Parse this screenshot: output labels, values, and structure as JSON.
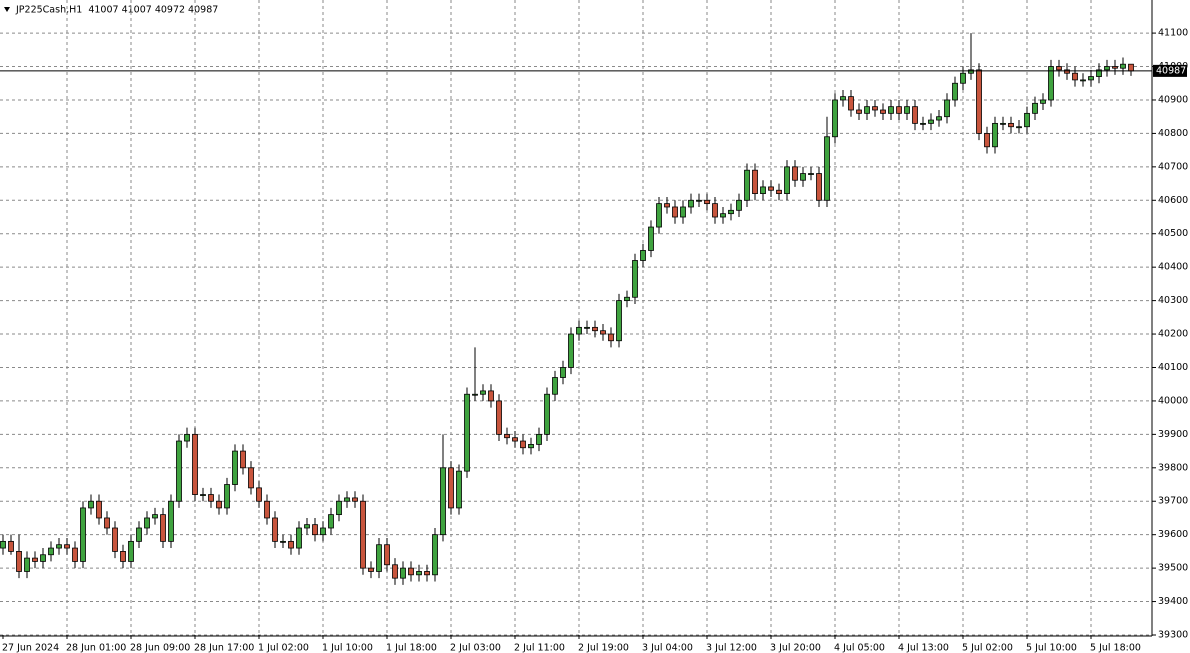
{
  "chart_data": {
    "type": "candlestick",
    "title": "JP225Cash,H1  41007 41007 40972 40987",
    "categories": [
      "27 Jun 2024",
      null,
      null,
      null,
      null,
      null,
      null,
      null,
      "28 Jun 01:00",
      null,
      null,
      null,
      null,
      null,
      null,
      null,
      "28 Jun 09:00",
      null,
      null,
      null,
      null,
      null,
      null,
      null,
      "28 Jun 17:00",
      null,
      null,
      null,
      null,
      null,
      null,
      null,
      "1 Jul 02:00",
      null,
      null,
      null,
      null,
      null,
      null,
      null,
      "1 Jul 10:00",
      null,
      null,
      null,
      null,
      null,
      null,
      null,
      "1 Jul 18:00",
      null,
      null,
      null,
      null,
      null,
      null,
      null,
      "2 Jul 03:00",
      null,
      null,
      null,
      null,
      null,
      null,
      null,
      "2 Jul 11:00",
      null,
      null,
      null,
      null,
      null,
      null,
      null,
      "2 Jul 19:00",
      null,
      null,
      null,
      null,
      null,
      null,
      null,
      "3 Jul 04:00",
      null,
      null,
      null,
      null,
      null,
      null,
      null,
      "3 Jul 12:00",
      null,
      null,
      null,
      null,
      null,
      null,
      null,
      "3 Jul 20:00",
      null,
      null,
      null,
      null,
      null,
      null,
      null,
      "4 Jul 05:00",
      null,
      null,
      null,
      null,
      null,
      null,
      null,
      "4 Jul 13:00",
      null,
      null,
      null,
      null,
      null,
      null,
      null,
      "5 Jul 02:00",
      null,
      null,
      null,
      null,
      null,
      null,
      null,
      "5 Jul 10:00",
      null,
      null,
      null,
      null,
      null,
      null,
      null,
      "5 Jul 18:00",
      null,
      null,
      null,
      null,
      null
    ],
    "open": [
      39560,
      39580,
      39550,
      39490,
      39530,
      39520,
      39540,
      39560,
      39570,
      39560,
      39520,
      39680,
      39700,
      39650,
      39620,
      39550,
      39520,
      39580,
      39620,
      39650,
      39660,
      39580,
      39700,
      39880,
      39900,
      39720,
      39720,
      39700,
      39680,
      39750,
      39850,
      39800,
      39740,
      39700,
      39650,
      39580,
      39580,
      39560,
      39620,
      39630,
      39600,
      39620,
      39660,
      39700,
      39710,
      39700,
      39500,
      39490,
      39570,
      39510,
      39470,
      39500,
      39480,
      39490,
      39480,
      39600,
      39800,
      39680,
      39790,
      40020,
      40020,
      40030,
      40000,
      39900,
      39890,
      39880,
      39860,
      39870,
      39900,
      40020,
      40070,
      40100,
      40200,
      40220,
      40220,
      40210,
      40200,
      40180,
      40300,
      40310,
      40420,
      40450,
      40520,
      40590,
      40580,
      40550,
      40580,
      40600,
      40600,
      40590,
      40550,
      40560,
      40570,
      40600,
      40690,
      40620,
      40640,
      40630,
      40620,
      40700,
      40660,
      40680,
      40680,
      40600,
      40790,
      40900,
      40910,
      40870,
      40860,
      40880,
      40870,
      40860,
      40880,
      40860,
      40880,
      40830,
      40830,
      40840,
      40850,
      40900,
      40950,
      40980,
      40990,
      40800,
      40760,
      40830,
      40830,
      40820,
      40820,
      40860,
      40890,
      40900,
      41000,
      40990,
      40980,
      40960,
      40960,
      40970,
      40990,
      41000,
      40995,
      41007
    ],
    "high": [
      39600,
      39600,
      39600,
      39550,
      39550,
      39560,
      39580,
      39590,
      39590,
      39580,
      39700,
      39720,
      39720,
      39670,
      39640,
      39570,
      39600,
      39640,
      39670,
      39680,
      39680,
      39720,
      39900,
      39920,
      39920,
      39740,
      39740,
      39720,
      39770,
      39870,
      39870,
      39820,
      39760,
      39720,
      39670,
      39600,
      39600,
      39640,
      39650,
      39650,
      39640,
      39680,
      39720,
      39730,
      39730,
      39720,
      39520,
      39590,
      39590,
      39530,
      39520,
      39520,
      39510,
      39510,
      39620,
      39900,
      39820,
      39810,
      40040,
      40160,
      40050,
      40050,
      40020,
      39920,
      39910,
      39900,
      39890,
      39920,
      40040,
      40090,
      40120,
      40220,
      40240,
      40240,
      40240,
      40230,
      40220,
      40320,
      40330,
      40440,
      40470,
      40540,
      40610,
      40610,
      40600,
      40600,
      40620,
      40620,
      40620,
      40610,
      40580,
      40590,
      40620,
      40710,
      40710,
      40660,
      40660,
      40650,
      40720,
      40720,
      40700,
      40700,
      40700,
      40850,
      40920,
      40930,
      40930,
      40890,
      40900,
      40900,
      40890,
      40900,
      40900,
      40900,
      40900,
      40850,
      40860,
      40870,
      40920,
      40970,
      41000,
      41100,
      41010,
      40820,
      40850,
      40850,
      40850,
      40840,
      40880,
      40910,
      40920,
      41020,
      41020,
      41010,
      41000,
      40980,
      40990,
      41010,
      41020,
      41020,
      41027,
      41007
    ],
    "low": [
      39540,
      39540,
      39470,
      39470,
      39500,
      39500,
      39520,
      39540,
      39540,
      39500,
      39500,
      39660,
      39630,
      39600,
      39530,
      39500,
      39500,
      39560,
      39600,
      39630,
      39560,
      39560,
      39680,
      39860,
      39700,
      39700,
      39680,
      39660,
      39660,
      39730,
      39780,
      39720,
      39680,
      39630,
      39560,
      39560,
      39540,
      39540,
      39600,
      39580,
      39580,
      39600,
      39640,
      39680,
      39680,
      39480,
      39470,
      39470,
      39490,
      39450,
      39450,
      39460,
      39460,
      39460,
      39460,
      39580,
      39660,
      39660,
      39770,
      40000,
      40000,
      39980,
      39880,
      39870,
      39860,
      39840,
      39840,
      39850,
      39880,
      40000,
      40050,
      40080,
      40180,
      40200,
      40190,
      40180,
      40160,
      40160,
      40280,
      40290,
      40400,
      40430,
      40500,
      40560,
      40530,
      40530,
      40560,
      40580,
      40570,
      40530,
      40530,
      40540,
      40550,
      40580,
      40600,
      40600,
      40610,
      40600,
      40600,
      40640,
      40640,
      40660,
      40580,
      40580,
      40770,
      40880,
      40850,
      40840,
      40840,
      40850,
      40840,
      40840,
      40840,
      40840,
      40810,
      40810,
      40810,
      40820,
      40830,
      40880,
      40930,
      40960,
      40780,
      40740,
      40740,
      40810,
      40800,
      40800,
      40800,
      40840,
      40870,
      40880,
      40970,
      40960,
      40940,
      40940,
      40940,
      40950,
      40970,
      40975,
      40975,
      40972
    ],
    "close": [
      39580,
      39550,
      39490,
      39530,
      39520,
      39540,
      39560,
      39570,
      39560,
      39520,
      39680,
      39700,
      39650,
      39620,
      39550,
      39520,
      39580,
      39620,
      39650,
      39660,
      39580,
      39700,
      39880,
      39900,
      39720,
      39720,
      39700,
      39680,
      39750,
      39850,
      39800,
      39740,
      39700,
      39650,
      39580,
      39580,
      39560,
      39620,
      39630,
      39600,
      39620,
      39660,
      39700,
      39710,
      39700,
      39500,
      39490,
      39570,
      39510,
      39470,
      39500,
      39480,
      39490,
      39480,
      39600,
      39800,
      39680,
      39790,
      40020,
      40020,
      40030,
      40000,
      39900,
      39890,
      39880,
      39860,
      39870,
      39900,
      40020,
      40070,
      40100,
      40200,
      40220,
      40220,
      40210,
      40200,
      40180,
      40300,
      40310,
      40420,
      40450,
      40520,
      40590,
      40580,
      40550,
      40580,
      40600,
      40600,
      40590,
      40550,
      40560,
      40570,
      40600,
      40690,
      40620,
      40640,
      40630,
      40620,
      40700,
      40660,
      40680,
      40680,
      40600,
      40790,
      40900,
      40910,
      40870,
      40860,
      40880,
      40870,
      40860,
      40880,
      40860,
      40880,
      40830,
      40830,
      40840,
      40850,
      40900,
      40950,
      40980,
      40990,
      40800,
      40760,
      40830,
      40830,
      40820,
      40820,
      40860,
      40890,
      40900,
      41000,
      40990,
      40980,
      40960,
      40960,
      40970,
      40990,
      41000,
      40995,
      41007,
      40987
    ],
    "up_color": "#3fa33f",
    "down_color": "#c8553d",
    "current_price": 40987,
    "ylim": [
      39300,
      41190
    ],
    "yticks": [
      39300,
      39400,
      39500,
      39600,
      39700,
      39800,
      39900,
      40000,
      40100,
      40200,
      40300,
      40400,
      40500,
      40600,
      40700,
      40800,
      40900,
      41000,
      41100
    ],
    "grid": true
  }
}
